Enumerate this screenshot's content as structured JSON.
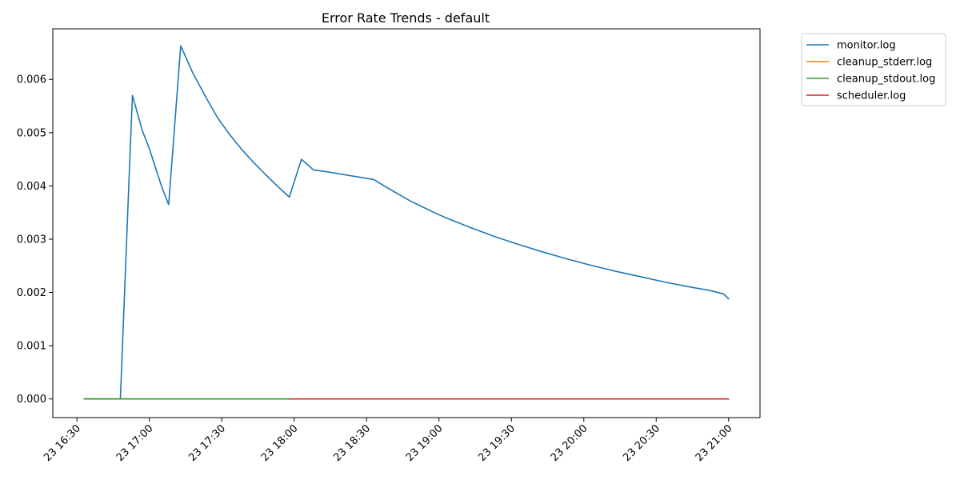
{
  "chart_data": {
    "type": "line",
    "title": "Error Rate Trends - default",
    "xlabel": "",
    "ylabel": "",
    "ylim": [
      -0.00035,
      0.00695
    ],
    "y_ticks": [
      0.0,
      0.001,
      0.002,
      0.003,
      0.004,
      0.005,
      0.006
    ],
    "y_tick_labels": [
      "0.000",
      "0.001",
      "0.002",
      "0.003",
      "0.004",
      "0.005",
      "0.006"
    ],
    "x_ticks": [
      "16:30",
      "17:00",
      "17:30",
      "18:00",
      "18:30",
      "19:00",
      "19:30",
      "20:00",
      "20:30",
      "21:00"
    ],
    "x_tick_labels": [
      "23 16:30",
      "23 17:00",
      "23 17:30",
      "23 18:00",
      "23 18:30",
      "23 19:00",
      "23 19:30",
      "23 20:00",
      "23 20:30",
      "23 21:00"
    ],
    "xlim": [
      "16:20",
      "21:13"
    ],
    "legend_position": "outside-top-right",
    "grid": false,
    "series": [
      {
        "name": "monitor.log",
        "color": "#1f77b4",
        "x": [
          "16:33",
          "16:48",
          "16:52",
          "16:53",
          "16:57",
          "17:00",
          "17:05",
          "17:08",
          "17:13",
          "17:18",
          "17:23",
          "17:28",
          "17:33",
          "17:38",
          "17:43",
          "17:48",
          "17:53",
          "17:58",
          "18:03",
          "18:08",
          "18:13",
          "18:33",
          "18:38",
          "18:43",
          "18:48",
          "18:53",
          "18:58",
          "19:03",
          "19:13",
          "19:23",
          "19:33",
          "19:43",
          "19:53",
          "20:03",
          "20:13",
          "20:23",
          "20:33",
          "20:43",
          "20:53",
          "20:58",
          "21:00"
        ],
        "values": [
          0.0,
          0.0,
          0.0046,
          0.0057,
          0.00505,
          0.0047,
          0.004,
          0.00365,
          0.00663,
          0.00612,
          0.0057,
          0.0053,
          0.00498,
          0.0047,
          0.00445,
          0.00422,
          0.004,
          0.00379,
          0.0045,
          0.0043,
          0.00427,
          0.00412,
          0.00398,
          0.00385,
          0.00372,
          0.00361,
          0.0035,
          0.0034,
          0.00322,
          0.00305,
          0.0029,
          0.00276,
          0.00263,
          0.00251,
          0.0024,
          0.0023,
          0.0022,
          0.00211,
          0.00203,
          0.00197,
          0.00188
        ]
      },
      {
        "name": "cleanup_stderr.log",
        "color": "#ff7f0e",
        "x": [
          "16:33",
          "17:58"
        ],
        "values": [
          0.0,
          0.0
        ]
      },
      {
        "name": "cleanup_stdout.log",
        "color": "#2ca02c",
        "x": [
          "16:33",
          "17:58"
        ],
        "values": [
          0.0,
          0.0
        ]
      },
      {
        "name": "scheduler.log",
        "color": "#d62728",
        "x": [
          "17:58",
          "21:00"
        ],
        "values": [
          0.0,
          0.0
        ]
      }
    ]
  }
}
